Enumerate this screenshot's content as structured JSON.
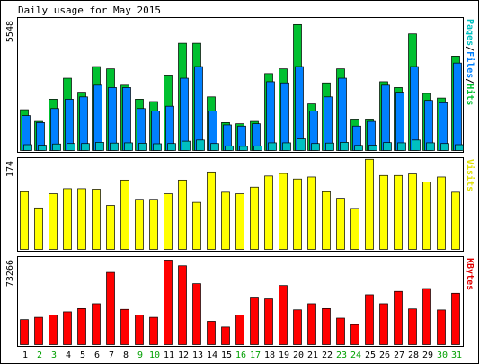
{
  "title": "Daily usage for May 2015",
  "colors": {
    "hits": "#00c030",
    "files": "#0080ff",
    "pages": "#00c0c0",
    "visits": "#ffff00",
    "kbytes": "#ff0000",
    "weekend_label": "#00a000",
    "weekday_label": "#000000"
  },
  "chart_data": [
    {
      "type": "bar",
      "title": "Daily usage for May 2015",
      "panel": "hits-files-pages",
      "ylabel_max": "5548",
      "right_label_parts": [
        {
          "text": "Pages",
          "color": "#00c0c0"
        },
        {
          "text": "/",
          "color": "#000000"
        },
        {
          "text": "Files",
          "color": "#0080ff"
        },
        {
          "text": "/",
          "color": "#000000"
        },
        {
          "text": "Hits",
          "color": "#00c030"
        }
      ],
      "ylim": [
        0,
        5548
      ],
      "categories": [
        "1",
        "2",
        "3",
        "4",
        "5",
        "6",
        "7",
        "8",
        "9",
        "10",
        "11",
        "12",
        "13",
        "14",
        "15",
        "16",
        "17",
        "18",
        "19",
        "20",
        "21",
        "22",
        "23",
        "24",
        "25",
        "26",
        "27",
        "28",
        "29",
        "30",
        "31"
      ],
      "series": [
        {
          "name": "Hits",
          "values": [
            1750,
            1250,
            2200,
            3100,
            2500,
            3600,
            3500,
            2800,
            2200,
            2100,
            3200,
            4600,
            4600,
            2300,
            1200,
            1150,
            1250,
            3300,
            3500,
            5400,
            2000,
            2900,
            3500,
            1350,
            1350,
            2950,
            2700,
            5000,
            2450,
            2250,
            4050
          ]
        },
        {
          "name": "Files",
          "values": [
            1500,
            1200,
            1800,
            2200,
            2300,
            2800,
            2700,
            2700,
            1800,
            1700,
            1900,
            3100,
            3600,
            1700,
            1100,
            1050,
            1150,
            2950,
            2900,
            3600,
            1700,
            2300,
            3100,
            1050,
            1250,
            2800,
            2500,
            3600,
            2150,
            2050,
            3750
          ]
        },
        {
          "name": "Pages",
          "values": [
            250,
            230,
            280,
            300,
            300,
            350,
            320,
            330,
            310,
            290,
            300,
            400,
            450,
            300,
            200,
            180,
            200,
            330,
            330,
            500,
            300,
            320,
            350,
            220,
            230,
            340,
            330,
            450,
            330,
            300,
            250
          ]
        }
      ]
    },
    {
      "type": "bar",
      "panel": "visits",
      "ylabel_max": "174",
      "right_label_parts": [
        {
          "text": "Visits",
          "color": "#e0e000"
        }
      ],
      "ylim": [
        0,
        174
      ],
      "categories": [
        "1",
        "2",
        "3",
        "4",
        "5",
        "6",
        "7",
        "8",
        "9",
        "10",
        "11",
        "12",
        "13",
        "14",
        "15",
        "16",
        "17",
        "18",
        "19",
        "20",
        "21",
        "22",
        "23",
        "24",
        "25",
        "26",
        "27",
        "28",
        "29",
        "30",
        "31"
      ],
      "series": [
        {
          "name": "Visits",
          "values": [
            114,
            82,
            110,
            120,
            120,
            119,
            87,
            137,
            99,
            99,
            110,
            137,
            93,
            153,
            113,
            110,
            123,
            145,
            150,
            139,
            143,
            114,
            101,
            81,
            178,
            146,
            146,
            149,
            133,
            143,
            113
          ]
        }
      ]
    },
    {
      "type": "bar",
      "panel": "kbytes",
      "ylabel_max": "73266",
      "right_label_parts": [
        {
          "text": "KBytes",
          "color": "#e00000"
        }
      ],
      "ylim": [
        0,
        73266
      ],
      "categories": [
        "1",
        "2",
        "3",
        "4",
        "5",
        "6",
        "7",
        "8",
        "9",
        "10",
        "11",
        "12",
        "13",
        "14",
        "15",
        "16",
        "17",
        "18",
        "19",
        "20",
        "21",
        "22",
        "23",
        "24",
        "25",
        "26",
        "27",
        "28",
        "29",
        "30",
        "31"
      ],
      "series": [
        {
          "name": "KBytes",
          "values": [
            21700,
            23700,
            25700,
            28500,
            31300,
            35500,
            62700,
            30600,
            25700,
            23700,
            73300,
            68400,
            52900,
            20300,
            15300,
            25800,
            40500,
            39700,
            51300,
            30200,
            35500,
            31300,
            23000,
            17400,
            43300,
            35500,
            46200,
            31000,
            48700,
            30100,
            44600
          ]
        }
      ]
    }
  ],
  "x_labels": [
    {
      "text": "1",
      "weekend": false
    },
    {
      "text": "2",
      "weekend": true
    },
    {
      "text": "3",
      "weekend": true
    },
    {
      "text": "4",
      "weekend": false
    },
    {
      "text": "5",
      "weekend": false
    },
    {
      "text": "6",
      "weekend": false
    },
    {
      "text": "7",
      "weekend": false
    },
    {
      "text": "8",
      "weekend": false
    },
    {
      "text": "9",
      "weekend": true
    },
    {
      "text": "10",
      "weekend": true
    },
    {
      "text": "11",
      "weekend": false
    },
    {
      "text": "12",
      "weekend": false
    },
    {
      "text": "13",
      "weekend": false
    },
    {
      "text": "14",
      "weekend": false
    },
    {
      "text": "15",
      "weekend": false
    },
    {
      "text": "16",
      "weekend": true
    },
    {
      "text": "17",
      "weekend": true
    },
    {
      "text": "18",
      "weekend": false
    },
    {
      "text": "19",
      "weekend": false
    },
    {
      "text": "20",
      "weekend": false
    },
    {
      "text": "21",
      "weekend": false
    },
    {
      "text": "22",
      "weekend": false
    },
    {
      "text": "23",
      "weekend": true
    },
    {
      "text": "24",
      "weekend": true
    },
    {
      "text": "25",
      "weekend": false
    },
    {
      "text": "26",
      "weekend": false
    },
    {
      "text": "27",
      "weekend": false
    },
    {
      "text": "28",
      "weekend": false
    },
    {
      "text": "29",
      "weekend": false
    },
    {
      "text": "30",
      "weekend": true
    },
    {
      "text": "31",
      "weekend": true
    }
  ]
}
